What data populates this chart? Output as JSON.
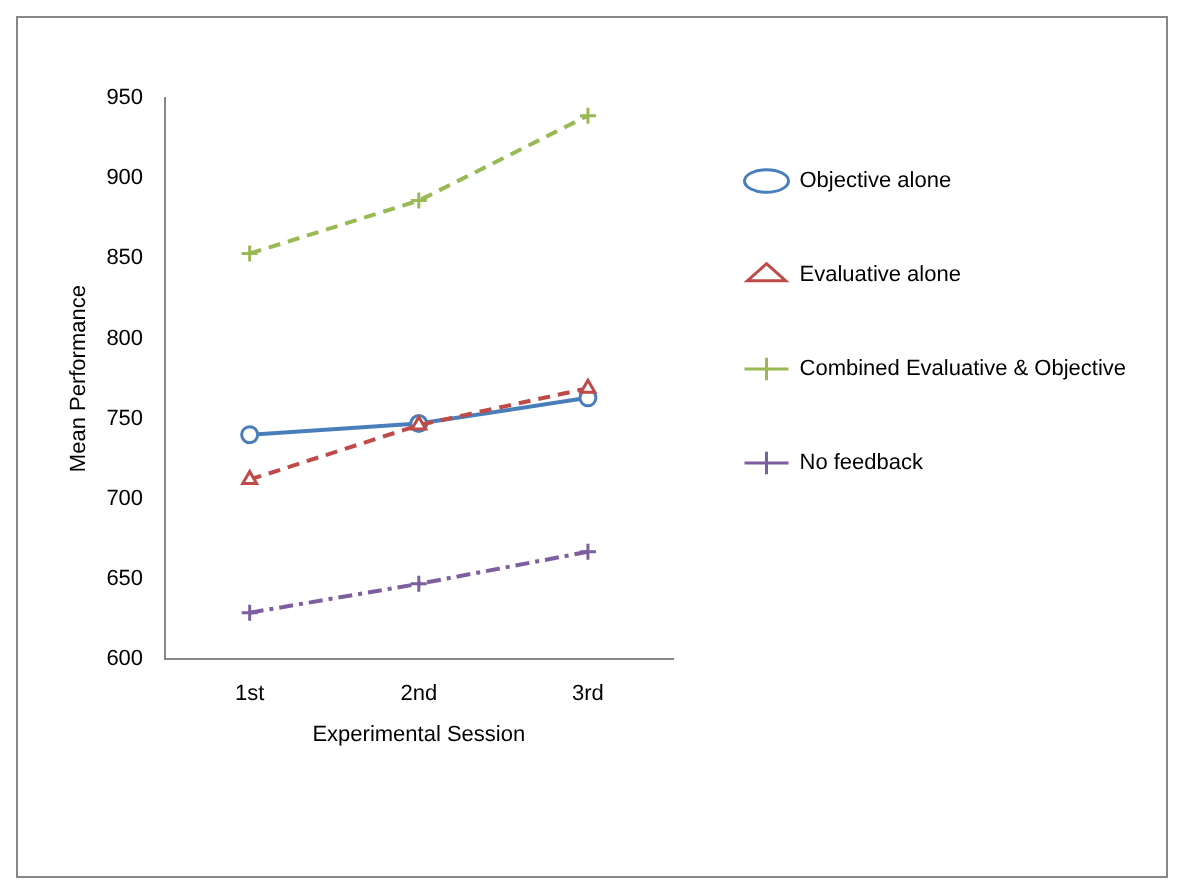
{
  "chart_data": {
    "type": "line",
    "xlabel": "Experimental Session",
    "ylabel": "Mean Performance",
    "categories": [
      "1st",
      "2nd",
      "3rd"
    ],
    "series": [
      {
        "name": "Objective alone",
        "color": "#4a7ebb",
        "values": [
          740,
          747,
          763
        ],
        "marker": "circle",
        "line_style": "solid"
      },
      {
        "name": "Evaluative alone",
        "color": "#be4b48",
        "values": [
          712,
          746,
          769
        ],
        "marker": "triangle",
        "line_style": "dashed"
      },
      {
        "name": "Combined Evaluative & Objective",
        "color": "#98b954",
        "values": [
          853,
          886,
          939
        ],
        "marker": "cross",
        "line_style": "dashed"
      },
      {
        "name": "No feedback",
        "color": "#7d5fa0",
        "values": [
          629,
          647,
          667
        ],
        "marker": "cross",
        "line_style": "dotted"
      }
    ],
    "ylim": [
      600,
      950
    ],
    "yticks": [
      600,
      650,
      700,
      750,
      800,
      850,
      900,
      950
    ],
    "grid": false,
    "legend": "right"
  }
}
